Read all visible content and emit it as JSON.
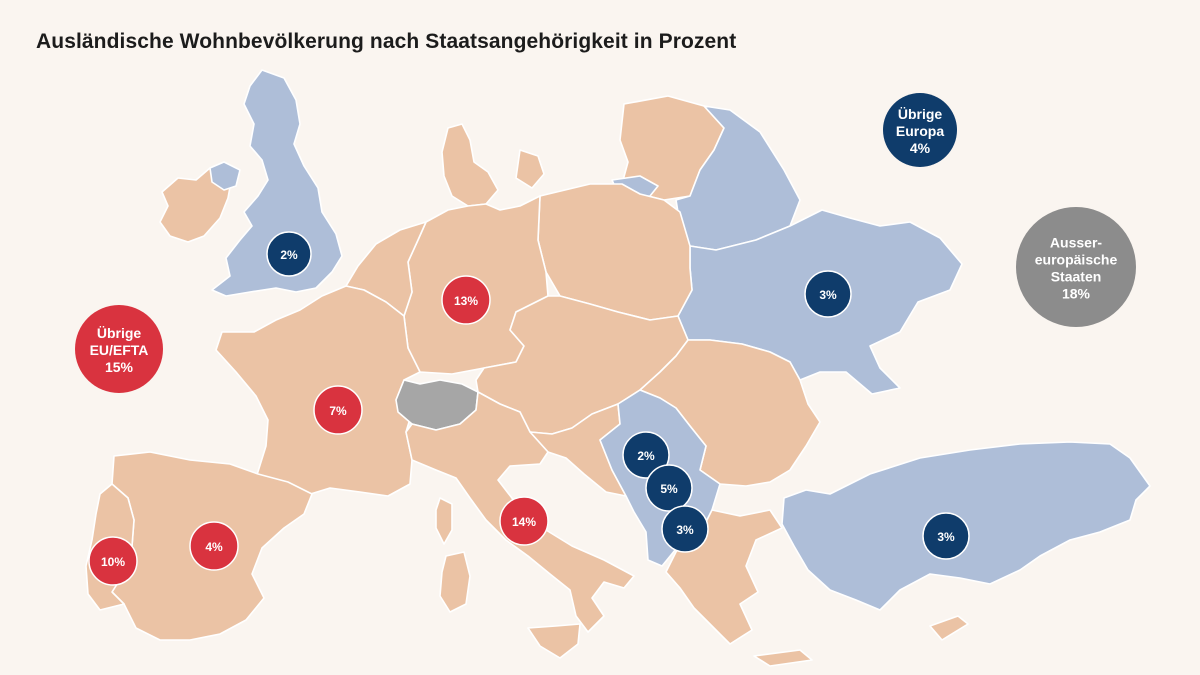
{
  "title": "Ausländische Wohnbevölkerung nach Staatsangehörigkeit in Prozent",
  "colors": {
    "background": "#faf5f0",
    "eu_efta_land": "#ebc3a5",
    "other_europe_land": "#aebed8",
    "switzerland_land": "#a6a6a6",
    "eu_efta_bubble": "#d9333f",
    "other_europe_bubble": "#0f3c6b",
    "non_european_bubble": "#8c8c8c"
  },
  "country_bubbles": [
    {
      "id": "uk",
      "label": "2%",
      "group": "other_europe"
    },
    {
      "id": "germany",
      "label": "13%",
      "group": "eu_efta"
    },
    {
      "id": "france",
      "label": "7%",
      "group": "eu_efta"
    },
    {
      "id": "spain",
      "label": "4%",
      "group": "eu_efta"
    },
    {
      "id": "portugal",
      "label": "10%",
      "group": "eu_efta"
    },
    {
      "id": "italy",
      "label": "14%",
      "group": "eu_efta"
    },
    {
      "id": "bosnia-serbia",
      "label": "2%",
      "group": "other_europe"
    },
    {
      "id": "kosovo",
      "label": "5%",
      "group": "other_europe"
    },
    {
      "id": "north-macedonia",
      "label": "3%",
      "group": "other_europe"
    },
    {
      "id": "ukraine",
      "label": "3%",
      "group": "other_europe"
    },
    {
      "id": "turkey",
      "label": "3%",
      "group": "other_europe"
    }
  ],
  "group_bubbles": [
    {
      "id": "other-eu-efta",
      "lines": [
        "Übrige",
        "EU/EFTA",
        "15%"
      ],
      "group": "eu_efta"
    },
    {
      "id": "other-europe",
      "lines": [
        "Übrige",
        "Europa",
        "4%"
      ],
      "group": "other_europe"
    },
    {
      "id": "non-european",
      "lines": [
        "Ausser-",
        "europäische",
        "Staaten",
        "18%"
      ],
      "group": "non_european"
    }
  ]
}
